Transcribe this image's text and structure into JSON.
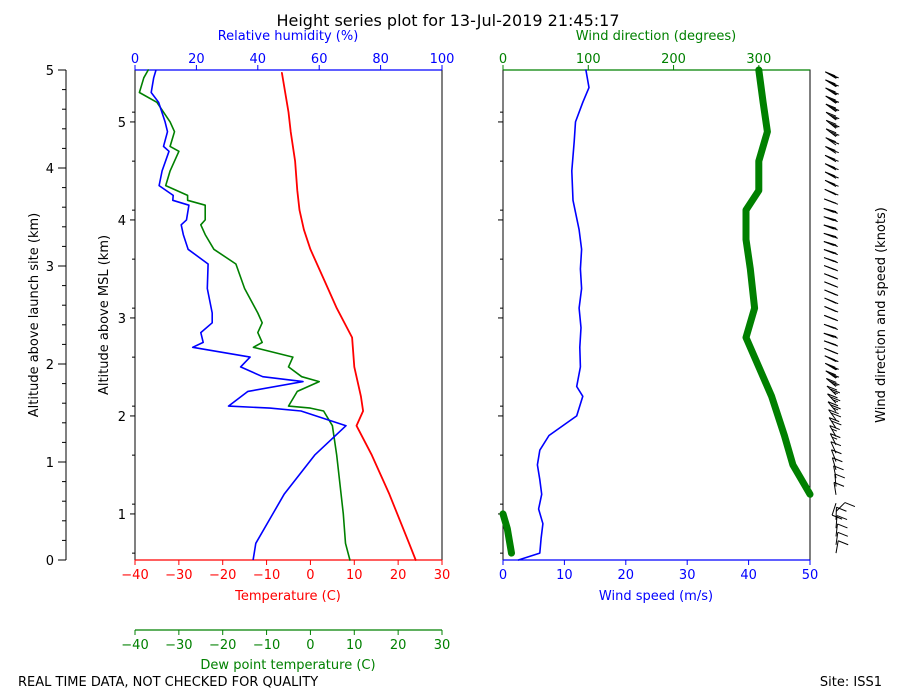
{
  "chart_data": [
    {
      "type": "line",
      "title": "Height series plot for 13-Jul-2019 21:45:17",
      "ylabel_left": "Altitude above launch site (km)",
      "ylabel_inner": "Altitude above MSL (km)",
      "ylim_msl": [
        0.53,
        5.53
      ],
      "left_ticks_launch": [
        "0",
        "1",
        "2",
        "3",
        "4",
        "5"
      ],
      "inner_ticks_msl": [
        "1",
        "2",
        "3",
        "4",
        "5"
      ],
      "axes": {
        "temperature": {
          "label": "Temperature (C)",
          "range": [
            -40,
            30
          ],
          "ticks": [
            "−40",
            "−30",
            "−20",
            "−10",
            "0",
            "10",
            "20",
            "30"
          ],
          "color": "#ff0000"
        },
        "dewpoint": {
          "label": "Dew point temperature (C)",
          "range": [
            -40,
            30
          ],
          "ticks": [
            "−40",
            "−30",
            "−20",
            "−10",
            "0",
            "10",
            "20",
            "30"
          ],
          "color": "#008000"
        },
        "humidity": {
          "label": "Relative humidity (%)",
          "range": [
            0,
            100
          ],
          "ticks": [
            "0",
            "20",
            "40",
            "60",
            "80",
            "100"
          ],
          "color": "#0000ff"
        }
      },
      "series": [
        {
          "name": "Temperature",
          "axis": "temperature",
          "color": "#ff0000",
          "points": [
            [
              24,
              0.53
            ],
            [
              22.5,
              0.7
            ],
            [
              18,
              1.2
            ],
            [
              14,
              1.6
            ],
            [
              10.5,
              1.9
            ],
            [
              12,
              2.05
            ],
            [
              11.5,
              2.2
            ],
            [
              10,
              2.5
            ],
            [
              9.5,
              2.8
            ],
            [
              6,
              3.1
            ],
            [
              3.5,
              3.35
            ],
            [
              0,
              3.7
            ],
            [
              -1.5,
              3.9
            ],
            [
              -2.5,
              4.1
            ],
            [
              -3,
              4.3
            ],
            [
              -3.5,
              4.6
            ],
            [
              -4.5,
              4.9
            ],
            [
              -5,
              5.1
            ],
            [
              -6.5,
              5.5
            ]
          ]
        },
        {
          "name": "Dew point",
          "axis": "dewpoint",
          "color": "#008000",
          "points": [
            [
              9,
              0.53
            ],
            [
              8,
              0.7
            ],
            [
              7.5,
              1.0
            ],
            [
              7,
              1.2
            ],
            [
              6,
              1.6
            ],
            [
              5,
              1.9
            ],
            [
              3,
              2.05
            ],
            [
              0,
              2.08
            ],
            [
              -5,
              2.1
            ],
            [
              -3,
              2.25
            ],
            [
              2,
              2.35
            ],
            [
              -2,
              2.4
            ],
            [
              -5,
              2.5
            ],
            [
              -4,
              2.6
            ],
            [
              -13,
              2.7
            ],
            [
              -11,
              2.75
            ],
            [
              -12,
              2.85
            ],
            [
              -11,
              2.95
            ],
            [
              -12,
              3.05
            ],
            [
              -15,
              3.3
            ],
            [
              -17,
              3.55
            ],
            [
              -22,
              3.7
            ],
            [
              -24,
              3.85
            ],
            [
              -25,
              3.95
            ],
            [
              -24,
              4.0
            ],
            [
              -24,
              4.15
            ],
            [
              -28,
              4.2
            ],
            [
              -28,
              4.25
            ],
            [
              -33,
              4.35
            ],
            [
              -32,
              4.5
            ],
            [
              -30,
              4.7
            ],
            [
              -32,
              4.75
            ],
            [
              -31,
              4.9
            ],
            [
              -32,
              5.0
            ],
            [
              -35,
              5.2
            ],
            [
              -39,
              5.3
            ],
            [
              -38,
              5.45
            ],
            [
              -37,
              5.53
            ]
          ]
        }
      ]
    },
    {
      "type": "line",
      "axes": {
        "wind_speed": {
          "label": "Wind speed (m/s)",
          "range": [
            0,
            50
          ],
          "ticks": [
            "0",
            "10",
            "20",
            "30",
            "40",
            "50"
          ],
          "color": "#0000ff"
        },
        "wind_direction": {
          "label": "Wind direction (degrees)",
          "range": [
            0,
            360
          ],
          "ticks": [
            "0",
            "100",
            "200",
            "300"
          ],
          "color": "#008000"
        }
      },
      "series": [
        {
          "name": "Wind speed",
          "axis": "wind_speed",
          "color": "#0000ff",
          "points": [
            [
              2.5,
              0.53
            ],
            [
              6,
              0.6
            ],
            [
              6.2,
              0.75
            ],
            [
              6.5,
              0.9
            ],
            [
              5.8,
              1.05
            ],
            [
              6.3,
              1.2
            ],
            [
              6,
              1.35
            ],
            [
              5.6,
              1.5
            ],
            [
              6,
              1.65
            ],
            [
              7.5,
              1.8
            ],
            [
              12,
              2.0
            ],
            [
              13,
              2.2
            ],
            [
              12,
              2.3
            ],
            [
              12.6,
              2.5
            ],
            [
              12.5,
              2.7
            ],
            [
              12.7,
              2.9
            ],
            [
              12.4,
              3.1
            ],
            [
              12.8,
              3.3
            ],
            [
              12.6,
              3.5
            ],
            [
              12.8,
              3.7
            ],
            [
              12.4,
              3.9
            ],
            [
              11.4,
              4.2
            ],
            [
              11.2,
              4.5
            ],
            [
              11.6,
              4.8
            ],
            [
              11.8,
              5.0
            ],
            [
              13,
              5.2
            ],
            [
              14,
              5.35
            ],
            [
              13.5,
              5.53
            ]
          ]
        },
        {
          "name": "Wind direction",
          "axis": "wind_direction",
          "color": "#008000",
          "points": [
            [
              10,
              0.6
            ],
            [
              5,
              0.85
            ],
            [
              0,
              1.0
            ],
            [
              360,
              1.2
            ],
            [
              340,
              1.5
            ],
            [
              330,
              1.8
            ],
            [
              315,
              2.2
            ],
            [
              300,
              2.5
            ],
            [
              285,
              2.8
            ],
            [
              295,
              3.1
            ],
            [
              290,
              3.5
            ],
            [
              285,
              3.8
            ],
            [
              285,
              4.1
            ],
            [
              300,
              4.3
            ],
            [
              300,
              4.6
            ],
            [
              310,
              4.9
            ],
            [
              305,
              5.2
            ],
            [
              300,
              5.53
            ]
          ]
        }
      ]
    }
  ],
  "barbs_label": "Wind direction and speed (knots)",
  "footer": {
    "left": "REAL TIME DATA, NOT CHECKED FOR QUALITY",
    "right": "Site: ISS1"
  }
}
